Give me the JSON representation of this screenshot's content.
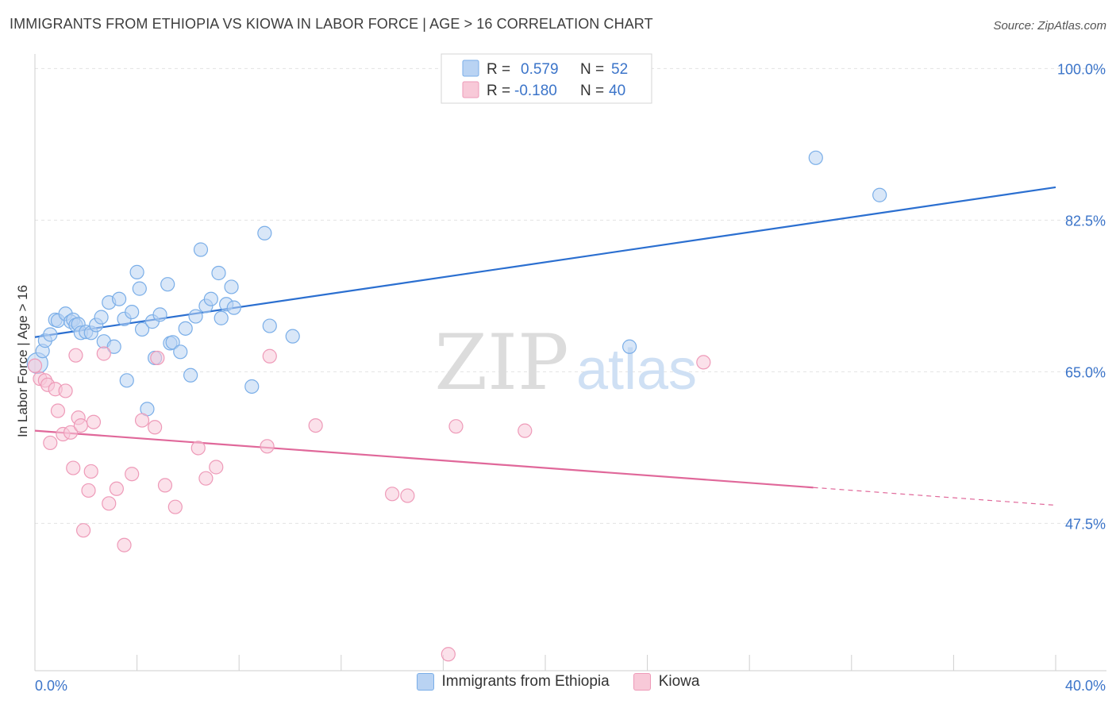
{
  "title": "IMMIGRANTS FROM ETHIOPIA VS KIOWA IN LABOR FORCE | AGE > 16 CORRELATION CHART",
  "source": "Source: ZipAtlas.com",
  "watermark": {
    "zip": "ZIP",
    "atlas": "atlas"
  },
  "colors": {
    "blue": "#7aaee8",
    "blue_fill": "#b9d3f3",
    "blue_line": "#2b6fd0",
    "pink": "#ee9ab8",
    "pink_fill": "#f8c9d8",
    "pink_line": "#e0689a",
    "label_blue": "#3b74c9"
  },
  "legend": {
    "r_label": "R =",
    "n_label": "N =",
    "rows": [
      {
        "r": "0.579",
        "n": "52"
      },
      {
        "r": "-0.180",
        "n": "40"
      }
    ]
  },
  "chart_data": {
    "type": "scatter",
    "title": "IMMIGRANTS FROM ETHIOPIA VS KIOWA IN LABOR FORCE | AGE > 16 CORRELATION CHART",
    "xlabel": "",
    "ylabel": "In Labor Force | Age > 16",
    "xlim": [
      0,
      40
    ],
    "ylim": [
      30.5,
      101.5
    ],
    "x_tick_labels": [
      "0.0%",
      "40.0%"
    ],
    "y_ticks": [
      47.5,
      65.0,
      82.5,
      100.0
    ],
    "y_tick_labels": [
      "47.5%",
      "65.0%",
      "82.5%",
      "100.0%"
    ],
    "grid": true,
    "legend_position": "top-center",
    "series": [
      {
        "name": "Immigrants from Ethiopia",
        "points": [
          [
            0.1,
            66.0
          ],
          [
            0.3,
            67.4
          ],
          [
            0.4,
            68.6
          ],
          [
            0.6,
            69.3
          ],
          [
            0.8,
            71.0
          ],
          [
            0.9,
            70.9
          ],
          [
            1.2,
            71.7
          ],
          [
            1.4,
            70.8
          ],
          [
            1.5,
            71.0
          ],
          [
            1.6,
            70.4
          ],
          [
            1.7,
            70.5
          ],
          [
            1.8,
            69.5
          ],
          [
            2.0,
            69.6
          ],
          [
            2.2,
            69.5
          ],
          [
            2.4,
            70.4
          ],
          [
            2.6,
            71.3
          ],
          [
            2.7,
            68.5
          ],
          [
            2.9,
            73.0
          ],
          [
            3.1,
            67.9
          ],
          [
            3.3,
            73.4
          ],
          [
            3.5,
            71.1
          ],
          [
            3.6,
            64.0
          ],
          [
            3.8,
            71.9
          ],
          [
            4.0,
            76.5
          ],
          [
            4.1,
            74.6
          ],
          [
            4.2,
            69.9
          ],
          [
            4.4,
            60.7
          ],
          [
            4.6,
            70.8
          ],
          [
            4.7,
            66.6
          ],
          [
            4.9,
            71.6
          ],
          [
            5.2,
            75.1
          ],
          [
            5.3,
            68.3
          ],
          [
            5.4,
            68.4
          ],
          [
            5.7,
            67.3
          ],
          [
            5.9,
            70.0
          ],
          [
            6.1,
            64.6
          ],
          [
            6.3,
            71.4
          ],
          [
            6.5,
            79.1
          ],
          [
            6.7,
            72.6
          ],
          [
            6.9,
            73.4
          ],
          [
            7.2,
            76.4
          ],
          [
            7.3,
            71.2
          ],
          [
            7.5,
            72.8
          ],
          [
            7.7,
            74.8
          ],
          [
            7.8,
            72.4
          ],
          [
            8.5,
            63.3
          ],
          [
            9.0,
            81.0
          ],
          [
            9.2,
            70.3
          ],
          [
            10.1,
            69.1
          ],
          [
            23.3,
            67.9
          ],
          [
            30.6,
            89.7
          ],
          [
            33.1,
            85.4
          ]
        ],
        "trend": {
          "x": [
            0,
            40
          ],
          "y": [
            69.0,
            86.3
          ]
        }
      },
      {
        "name": "Kiowa",
        "points": [
          [
            0.2,
            64.2
          ],
          [
            0.4,
            64.0
          ],
          [
            0.5,
            63.5
          ],
          [
            0.6,
            56.8
          ],
          [
            0.8,
            63.0
          ],
          [
            0.9,
            60.5
          ],
          [
            1.1,
            57.8
          ],
          [
            1.2,
            62.8
          ],
          [
            1.4,
            58.0
          ],
          [
            1.5,
            53.9
          ],
          [
            1.6,
            66.9
          ],
          [
            1.7,
            59.7
          ],
          [
            1.8,
            58.8
          ],
          [
            1.9,
            46.7
          ],
          [
            2.1,
            51.3
          ],
          [
            2.2,
            53.5
          ],
          [
            2.3,
            59.2
          ],
          [
            2.7,
            67.1
          ],
          [
            2.9,
            49.8
          ],
          [
            3.2,
            51.5
          ],
          [
            3.5,
            45.0
          ],
          [
            3.8,
            53.2
          ],
          [
            4.2,
            59.4
          ],
          [
            4.7,
            58.6
          ],
          [
            4.8,
            66.6
          ],
          [
            5.1,
            51.9
          ],
          [
            5.5,
            49.4
          ],
          [
            6.4,
            56.2
          ],
          [
            6.7,
            52.7
          ],
          [
            7.1,
            54.0
          ],
          [
            9.1,
            56.4
          ],
          [
            9.2,
            66.8
          ],
          [
            11.0,
            58.8
          ],
          [
            14.0,
            50.9
          ],
          [
            14.6,
            50.7
          ],
          [
            16.2,
            32.4
          ],
          [
            16.5,
            58.7
          ],
          [
            19.2,
            58.2
          ],
          [
            26.2,
            66.1
          ],
          [
            0.0,
            65.7
          ]
        ],
        "trend": {
          "x": [
            0,
            40
          ],
          "y": [
            58.2,
            49.6
          ],
          "solid_until": 30.5
        }
      }
    ]
  }
}
